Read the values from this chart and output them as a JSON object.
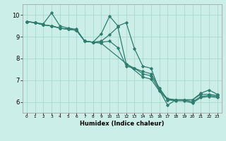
{
  "xlabel": "Humidex (Indice chaleur)",
  "bg_color": "#cceee8",
  "grid_color": "#aad8d0",
  "line_color": "#2e7d6e",
  "xlim": [
    -0.5,
    23.5
  ],
  "ylim": [
    5.5,
    10.5
  ],
  "yticks": [
    6,
    7,
    8,
    9,
    10
  ],
  "xticks": [
    0,
    1,
    2,
    3,
    4,
    5,
    6,
    7,
    8,
    9,
    10,
    11,
    12,
    13,
    14,
    15,
    16,
    17,
    18,
    19,
    20,
    21,
    22,
    23
  ],
  "lines": [
    {
      "x": [
        0,
        1,
        2,
        3,
        4,
        5,
        6,
        7,
        8,
        9,
        10,
        11,
        12,
        13,
        14,
        15,
        16,
        17,
        18,
        19,
        20,
        21,
        22,
        23
      ],
      "y": [
        9.7,
        9.65,
        9.6,
        10.1,
        9.5,
        9.4,
        9.35,
        8.8,
        8.75,
        9.15,
        9.95,
        9.5,
        9.65,
        8.45,
        7.65,
        7.55,
        6.55,
        5.85,
        6.1,
        6.1,
        6.1,
        6.4,
        6.55,
        6.35
      ]
    },
    {
      "x": [
        0,
        1,
        2,
        3,
        4,
        5,
        6,
        7,
        8,
        9,
        10,
        11,
        12,
        13,
        14,
        15,
        16,
        17,
        18,
        19,
        20,
        21,
        22,
        23
      ],
      "y": [
        9.7,
        9.65,
        9.55,
        9.5,
        9.4,
        9.35,
        9.3,
        8.8,
        8.75,
        8.8,
        9.1,
        9.45,
        7.75,
        7.55,
        7.4,
        7.3,
        6.65,
        6.1,
        6.1,
        6.1,
        6.1,
        6.35,
        6.35,
        6.3
      ]
    },
    {
      "x": [
        0,
        1,
        2,
        3,
        4,
        5,
        6,
        7,
        8,
        9,
        10,
        11,
        12,
        13,
        14,
        15,
        16,
        17,
        18,
        19,
        20,
        21,
        22,
        23
      ],
      "y": [
        9.7,
        9.65,
        9.55,
        9.5,
        9.4,
        9.35,
        9.3,
        8.8,
        8.75,
        8.75,
        8.8,
        8.5,
        7.65,
        7.55,
        7.3,
        7.2,
        6.55,
        6.15,
        6.1,
        6.1,
        6.0,
        6.25,
        6.3,
        6.25
      ]
    },
    {
      "x": [
        0,
        1,
        2,
        3,
        4,
        5,
        6,
        7,
        8,
        9,
        14,
        15,
        16,
        17,
        18,
        19,
        20,
        21,
        22,
        23
      ],
      "y": [
        9.7,
        9.65,
        9.55,
        9.5,
        9.4,
        9.35,
        9.3,
        8.8,
        8.75,
        8.7,
        7.15,
        7.05,
        6.5,
        6.1,
        6.05,
        6.05,
        5.95,
        6.2,
        6.25,
        6.2
      ]
    }
  ]
}
